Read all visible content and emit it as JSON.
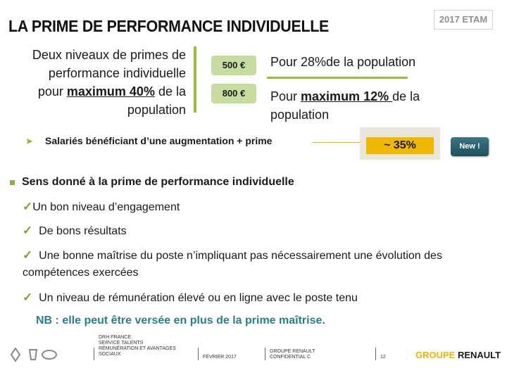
{
  "header": {
    "title": "LA PRIME DE PERFORMANCE INDIVIDUELLE",
    "tag": "2017 ETAM"
  },
  "intro": {
    "line1": "Deux niveaux de primes de performance individuelle pour ",
    "highlight": "maximum 40%",
    "line2": " de la population"
  },
  "levels": [
    {
      "amount": "500 €",
      "text": "Pour 28%de la population"
    },
    {
      "amount": "800 €",
      "text_prefix": "Pour ",
      "highlight": "maximum 12% ",
      "text_suffix": "de la population"
    }
  ],
  "beneficiaries": {
    "label": "Salariés bénéficiant d’une augmentation + prime",
    "value": "~ 35%",
    "badge": "New !"
  },
  "sens": {
    "title": "Sens donné à la prime de performance  individuelle",
    "items": [
      "Un bon niveau d’engagement",
      "De bons résultats",
      "Une bonne maîtrise du poste n’impliquant pas nécessairement une évolution des compétences exercées",
      "Un niveau de rémunération élevé ou en ligne avec le poste tenu"
    ],
    "nb": "NB : elle peut être versée en plus de la prime maîtrise."
  },
  "footer": {
    "dept": [
      "DRH FRANCE",
      "SERVICE TALENTS",
      "RÉMUNÉRATION ET AVANTAGES",
      "SOCIAUX"
    ],
    "date": "FÉVRIER 2017",
    "conf": [
      "GROUPE RENAULT",
      "CONFIDENTIAL C"
    ],
    "page": "12",
    "brand_part1": "GROUPE",
    "brand_part2": " RENAULT"
  },
  "colors": {
    "accent_green": "#9bbb3b",
    "amount_bg": "#c7dca0",
    "highlight_yellow": "#f0b800",
    "nb_teal": "#2a7d8a",
    "new_button": "#2b6170"
  }
}
